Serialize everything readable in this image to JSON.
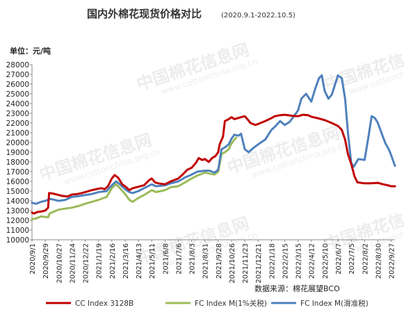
{
  "chart_data": {
    "type": "line",
    "title": "国内外棉花现货价格对比",
    "subtitle": "(2020.9.1-2022.10.5)",
    "ylabel": "单位：元/吨",
    "source": "数据来源：棉花展望BCO",
    "ylim": [
      10000,
      28000
    ],
    "yticks": [
      10000,
      11000,
      12000,
      13000,
      14000,
      15000,
      16000,
      17000,
      18000,
      19000,
      20000,
      21000,
      22000,
      23000,
      24000,
      25000,
      26000,
      27000,
      28000
    ],
    "xlim": [
      "2020-09-01",
      "2022-10-05"
    ],
    "xticks": [
      "2020/9/1",
      "2020/9/29",
      "2020/10/27",
      "2020/11/24",
      "2020/12/22",
      "2021/1/19",
      "2021/2/16",
      "2021/3/16",
      "2021/4/13",
      "2021/5/11",
      "2021/6/8",
      "2021/7/6",
      "2021/8/3",
      "2021/8/31",
      "2021/9/28",
      "2021/10/26",
      "2021/11/23",
      "2021/12/21",
      "2022/1/18",
      "2022/2/15",
      "2022/3/15",
      "2022/4/12",
      "2022/5/10",
      "2022/6/7",
      "2022/7/5",
      "2022/8/2",
      "2022/8/30",
      "2022/9/27"
    ],
    "grid": false,
    "legend": "bottom",
    "series": [
      {
        "name": "CC Index 3128B",
        "color": "#c00000",
        "points": [
          [
            "2020-09-01",
            12800
          ],
          [
            "2020-09-05",
            12700
          ],
          [
            "2020-09-12",
            12850
          ],
          [
            "2020-09-20",
            12900
          ],
          [
            "2020-09-29",
            13000
          ],
          [
            "2020-10-05",
            13300
          ],
          [
            "2020-10-07",
            14800
          ],
          [
            "2020-10-15",
            14750
          ],
          [
            "2020-10-27",
            14600
          ],
          [
            "2020-11-05",
            14500
          ],
          [
            "2020-11-15",
            14450
          ],
          [
            "2020-11-24",
            14650
          ],
          [
            "2020-12-05",
            14700
          ],
          [
            "2020-12-15",
            14800
          ],
          [
            "2020-12-22",
            14900
          ],
          [
            "2021-01-05",
            15100
          ],
          [
            "2021-01-19",
            15250
          ],
          [
            "2021-01-25",
            15300
          ],
          [
            "2021-02-01",
            15200
          ],
          [
            "2021-02-08",
            15500
          ],
          [
            "2021-02-16",
            16300
          ],
          [
            "2021-02-22",
            16650
          ],
          [
            "2021-03-01",
            16400
          ],
          [
            "2021-03-10",
            15700
          ],
          [
            "2021-03-16",
            15500
          ],
          [
            "2021-03-25",
            15100
          ],
          [
            "2021-04-01",
            15300
          ],
          [
            "2021-04-13",
            15450
          ],
          [
            "2021-04-25",
            15600
          ],
          [
            "2021-05-05",
            16100
          ],
          [
            "2021-05-11",
            16300
          ],
          [
            "2021-05-18",
            15900
          ],
          [
            "2021-05-25",
            15800
          ],
          [
            "2021-06-08",
            15700
          ],
          [
            "2021-06-20",
            16000
          ],
          [
            "2021-07-06",
            16300
          ],
          [
            "2021-07-15",
            16700
          ],
          [
            "2021-07-25",
            17200
          ],
          [
            "2021-08-03",
            17400
          ],
          [
            "2021-08-12",
            17900
          ],
          [
            "2021-08-18",
            18400
          ],
          [
            "2021-08-25",
            18200
          ],
          [
            "2021-08-31",
            18300
          ],
          [
            "2021-09-08",
            18000
          ],
          [
            "2021-09-15",
            18400
          ],
          [
            "2021-09-22",
            18600
          ],
          [
            "2021-09-28",
            19000
          ],
          [
            "2021-10-01",
            19800
          ],
          [
            "2021-10-08",
            20600
          ],
          [
            "2021-10-12",
            22200
          ],
          [
            "2021-10-20",
            22400
          ],
          [
            "2021-10-26",
            22600
          ],
          [
            "2021-11-01",
            22400
          ],
          [
            "2021-11-08",
            22500
          ],
          [
            "2021-11-15",
            22600
          ],
          [
            "2021-11-23",
            22700
          ],
          [
            "2021-11-30",
            22300
          ],
          [
            "2021-12-05",
            22000
          ],
          [
            "2021-12-15",
            21800
          ],
          [
            "2021-12-21",
            21900
          ],
          [
            "2022-01-05",
            22200
          ],
          [
            "2022-01-18",
            22500
          ],
          [
            "2022-01-25",
            22700
          ],
          [
            "2022-02-05",
            22800
          ],
          [
            "2022-02-15",
            22850
          ],
          [
            "2022-03-01",
            22750
          ],
          [
            "2022-03-15",
            22700
          ],
          [
            "2022-03-25",
            22850
          ],
          [
            "2022-04-05",
            22800
          ],
          [
            "2022-04-12",
            22650
          ],
          [
            "2022-04-25",
            22500
          ],
          [
            "2022-05-10",
            22300
          ],
          [
            "2022-05-25",
            22000
          ],
          [
            "2022-06-07",
            21700
          ],
          [
            "2022-06-15",
            21300
          ],
          [
            "2022-06-22",
            20300
          ],
          [
            "2022-06-28",
            18800
          ],
          [
            "2022-07-05",
            17800
          ],
          [
            "2022-07-12",
            16500
          ],
          [
            "2022-07-18",
            15900
          ],
          [
            "2022-08-02",
            15800
          ],
          [
            "2022-08-15",
            15800
          ],
          [
            "2022-08-30",
            15850
          ],
          [
            "2022-09-10",
            15700
          ],
          [
            "2022-09-20",
            15600
          ],
          [
            "2022-09-27",
            15500
          ],
          [
            "2022-10-05",
            15500
          ]
        ]
      },
      {
        "name": "FC Index M(1%关税)",
        "color": "#9bbb59",
        "points": [
          [
            "2020-09-01",
            12100
          ],
          [
            "2020-09-10",
            12200
          ],
          [
            "2020-09-20",
            12400
          ],
          [
            "2020-10-05",
            12300
          ],
          [
            "2020-10-08",
            12700
          ],
          [
            "2020-10-27",
            13100
          ],
          [
            "2020-11-10",
            13200
          ],
          [
            "2020-11-24",
            13300
          ],
          [
            "2020-12-10",
            13500
          ],
          [
            "2020-12-22",
            13700
          ],
          [
            "2021-01-05",
            13900
          ],
          [
            "2021-01-19",
            14100
          ],
          [
            "2021-02-05",
            14400
          ],
          [
            "2021-02-16",
            15300
          ],
          [
            "2021-02-25",
            15700
          ],
          [
            "2021-03-05",
            15300
          ],
          [
            "2021-03-16",
            14700
          ],
          [
            "2021-03-25",
            14100
          ],
          [
            "2021-04-01",
            13900
          ],
          [
            "2021-04-13",
            14300
          ],
          [
            "2021-04-25",
            14600
          ],
          [
            "2021-05-11",
            15100
          ],
          [
            "2021-05-20",
            14900
          ],
          [
            "2021-06-08",
            15100
          ],
          [
            "2021-06-20",
            15400
          ],
          [
            "2021-07-06",
            15500
          ],
          [
            "2021-07-20",
            15900
          ],
          [
            "2021-08-03",
            16300
          ],
          [
            "2021-08-15",
            16600
          ],
          [
            "2021-08-31",
            16900
          ],
          [
            "2021-09-10",
            16800
          ],
          [
            "2021-09-20",
            16700
          ],
          [
            "2021-09-28",
            17000
          ],
          [
            "2021-10-05",
            18800
          ],
          [
            "2021-10-12",
            19000
          ],
          [
            "2021-10-20",
            19300
          ],
          [
            "2021-10-26",
            19900
          ],
          [
            "2021-11-01",
            20300
          ],
          [
            "2021-11-05",
            20500
          ]
        ]
      },
      {
        "name": "FC Index M(滑准税)",
        "color": "#4f81bd",
        "points": [
          [
            "2020-09-01",
            13800
          ],
          [
            "2020-09-10",
            13700
          ],
          [
            "2020-09-20",
            13900
          ],
          [
            "2020-09-29",
            14000
          ],
          [
            "2020-10-10",
            14200
          ],
          [
            "2020-10-27",
            14000
          ],
          [
            "2020-11-10",
            14100
          ],
          [
            "2020-11-24",
            14400
          ],
          [
            "2020-12-10",
            14500
          ],
          [
            "2020-12-22",
            14600
          ],
          [
            "2021-01-05",
            14700
          ],
          [
            "2021-01-19",
            14900
          ],
          [
            "2021-02-05",
            15000
          ],
          [
            "2021-02-16",
            15600
          ],
          [
            "2021-02-25",
            16000
          ],
          [
            "2021-03-05",
            15700
          ],
          [
            "2021-03-16",
            15200
          ],
          [
            "2021-03-25",
            14900
          ],
          [
            "2021-04-01",
            14800
          ],
          [
            "2021-04-13",
            15000
          ],
          [
            "2021-04-25",
            15300
          ],
          [
            "2021-05-11",
            15700
          ],
          [
            "2021-05-20",
            15500
          ],
          [
            "2021-06-08",
            15600
          ],
          [
            "2021-06-20",
            15800
          ],
          [
            "2021-07-06",
            16000
          ],
          [
            "2021-07-20",
            16400
          ],
          [
            "2021-08-03",
            16700
          ],
          [
            "2021-08-15",
            17000
          ],
          [
            "2021-08-31",
            17100
          ],
          [
            "2021-09-10",
            17100
          ],
          [
            "2021-09-20",
            16900
          ],
          [
            "2021-09-28",
            17200
          ],
          [
            "2021-10-05",
            19300
          ],
          [
            "2021-10-12",
            19500
          ],
          [
            "2021-10-20",
            19800
          ],
          [
            "2021-10-26",
            20400
          ],
          [
            "2021-11-01",
            20800
          ],
          [
            "2021-11-10",
            20700
          ],
          [
            "2021-11-15",
            20900
          ],
          [
            "2021-11-23",
            19300
          ],
          [
            "2021-12-01",
            19000
          ],
          [
            "2021-12-10",
            19400
          ],
          [
            "2021-12-21",
            19800
          ],
          [
            "2022-01-05",
            20300
          ],
          [
            "2022-01-18",
            21300
          ],
          [
            "2022-01-25",
            21600
          ],
          [
            "2022-02-05",
            22200
          ],
          [
            "2022-02-15",
            21800
          ],
          [
            "2022-02-25",
            22100
          ],
          [
            "2022-03-05",
            22600
          ],
          [
            "2022-03-15",
            23300
          ],
          [
            "2022-03-22",
            24500
          ],
          [
            "2022-04-01",
            25000
          ],
          [
            "2022-04-12",
            24200
          ],
          [
            "2022-04-20",
            25500
          ],
          [
            "2022-04-28",
            26600
          ],
          [
            "2022-05-04",
            26900
          ],
          [
            "2022-05-10",
            25300
          ],
          [
            "2022-05-18",
            24500
          ],
          [
            "2022-05-25",
            24900
          ],
          [
            "2022-06-07",
            26900
          ],
          [
            "2022-06-15",
            26600
          ],
          [
            "2022-06-22",
            24500
          ],
          [
            "2022-06-28",
            21000
          ],
          [
            "2022-07-05",
            17900
          ],
          [
            "2022-07-10",
            17500
          ],
          [
            "2022-07-20",
            18300
          ],
          [
            "2022-08-02",
            18200
          ],
          [
            "2022-08-10",
            20500
          ],
          [
            "2022-08-17",
            22700
          ],
          [
            "2022-08-24",
            22500
          ],
          [
            "2022-08-30",
            22000
          ],
          [
            "2022-09-08",
            20800
          ],
          [
            "2022-09-15",
            19900
          ],
          [
            "2022-09-22",
            19300
          ],
          [
            "2022-09-27",
            18700
          ],
          [
            "2022-10-05",
            17600
          ]
        ]
      }
    ]
  },
  "watermark": {
    "text_cn": "中国棉花信息网",
    "text_en": "www.cottonchina.org.cn"
  }
}
